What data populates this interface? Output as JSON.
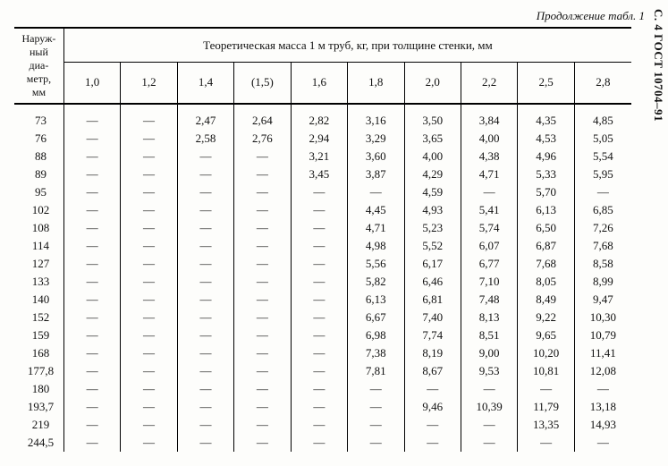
{
  "side_label": "С. 4 ГОСТ 10704–91",
  "caption": "Продолжение табл. 1",
  "table": {
    "row_header": "Наруж-\nный\nдиа-\nметр,\nмм",
    "group_header": "Теоретическая масса 1 м труб, кг, при толщине стенки, мм",
    "columns": [
      "1,0",
      "1,2",
      "1,4",
      "(1,5)",
      "1,6",
      "1,8",
      "2,0",
      "2,2",
      "2,5",
      "2,8"
    ],
    "dash": "—",
    "rows": [
      {
        "d": "73",
        "v": [
          null,
          null,
          "2,47",
          "2,64",
          "2,82",
          "3,16",
          "3,50",
          "3,84",
          "4,35",
          "4,85"
        ]
      },
      {
        "d": "76",
        "v": [
          null,
          null,
          "2,58",
          "2,76",
          "2,94",
          "3,29",
          "3,65",
          "4,00",
          "4,53",
          "5,05"
        ]
      },
      {
        "d": "88",
        "v": [
          null,
          null,
          null,
          null,
          "3,21",
          "3,60",
          "4,00",
          "4,38",
          "4,96",
          "5,54"
        ]
      },
      {
        "d": "89",
        "v": [
          null,
          null,
          null,
          null,
          "3,45",
          "3,87",
          "4,29",
          "4,71",
          "5,33",
          "5,95"
        ]
      },
      {
        "d": "95",
        "v": [
          null,
          null,
          null,
          null,
          null,
          null,
          "4,59",
          null,
          "5,70",
          null
        ]
      },
      {
        "d": "102",
        "v": [
          null,
          null,
          null,
          null,
          null,
          "4,45",
          "4,93",
          "5,41",
          "6,13",
          "6,85"
        ]
      },
      {
        "d": "108",
        "v": [
          null,
          null,
          null,
          null,
          null,
          "4,71",
          "5,23",
          "5,74",
          "6,50",
          "7,26"
        ]
      },
      {
        "d": "114",
        "v": [
          null,
          null,
          null,
          null,
          null,
          "4,98",
          "5,52",
          "6,07",
          "6,87",
          "7,68"
        ]
      },
      {
        "d": "127",
        "v": [
          null,
          null,
          null,
          null,
          null,
          "5,56",
          "6,17",
          "6,77",
          "7,68",
          "8,58"
        ]
      },
      {
        "d": "133",
        "v": [
          null,
          null,
          null,
          null,
          null,
          "5,82",
          "6,46",
          "7,10",
          "8,05",
          "8,99"
        ]
      },
      {
        "d": "140",
        "v": [
          null,
          null,
          null,
          null,
          null,
          "6,13",
          "6,81",
          "7,48",
          "8,49",
          "9,47"
        ]
      },
      {
        "d": "152",
        "v": [
          null,
          null,
          null,
          null,
          null,
          "6,67",
          "7,40",
          "8,13",
          "9,22",
          "10,30"
        ]
      },
      {
        "d": "159",
        "v": [
          null,
          null,
          null,
          null,
          null,
          "6,98",
          "7,74",
          "8,51",
          "9,65",
          "10,79"
        ]
      },
      {
        "d": "168",
        "v": [
          null,
          null,
          null,
          null,
          null,
          "7,38",
          "8,19",
          "9,00",
          "10,20",
          "11,41"
        ]
      },
      {
        "d": "177,8",
        "v": [
          null,
          null,
          null,
          null,
          null,
          "7,81",
          "8,67",
          "9,53",
          "10,81",
          "12,08"
        ]
      },
      {
        "d": "180",
        "v": [
          null,
          null,
          null,
          null,
          null,
          null,
          null,
          null,
          null,
          null
        ]
      },
      {
        "d": "193,7",
        "v": [
          null,
          null,
          null,
          null,
          null,
          null,
          "9,46",
          "10,39",
          "11,79",
          "13,18"
        ]
      },
      {
        "d": "219",
        "v": [
          null,
          null,
          null,
          null,
          null,
          null,
          null,
          null,
          "13,35",
          "14,93"
        ]
      },
      {
        "d": "244,5",
        "v": [
          null,
          null,
          null,
          null,
          null,
          null,
          null,
          null,
          null,
          null
        ]
      }
    ]
  }
}
